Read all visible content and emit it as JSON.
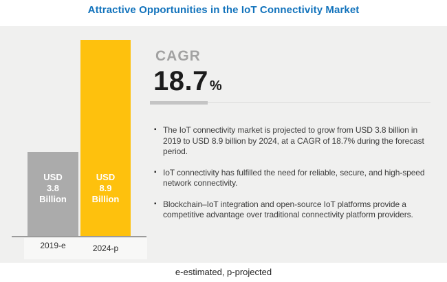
{
  "page": {
    "title": "Attractive Opportunities in the IoT Connectivity Market",
    "footnote": "e-estimated, p-projected"
  },
  "cagr": {
    "label": "CAGR",
    "value": "18.7",
    "unit": "%"
  },
  "insights": [
    {
      "text": "The IoT connectivity market is projected to grow from USD 3.8 billion in 2019 to USD 8.9 billion by 2024, at a CAGR of 18.7% during the forecast period."
    },
    {
      "text": "IoT connectivity has fulfilled the need for reliable, secure, and high-speed network connectivity."
    },
    {
      "text": "Blockchain–IoT integration and open-source IoT platforms provide a competitive advantage over traditional connectivity platform providers."
    }
  ],
  "icons": {
    "bullet": "▪"
  },
  "chart_data": {
    "type": "bar",
    "title": "Attractive Opportunities in the IoT Connectivity Market",
    "categories": [
      "2019-e",
      "2024-p"
    ],
    "values": [
      3.8,
      8.9
    ],
    "value_unit": "USD Billion",
    "cagr_percent": 18.7,
    "ylim": [
      0,
      8.9
    ],
    "grid": false,
    "legend": false,
    "bars": [
      {
        "category": "2019-e",
        "value": 3.8,
        "color": "#ABABAB",
        "label_lines": [
          "USD",
          "3.8",
          "Billion"
        ]
      },
      {
        "category": "2024-p",
        "value": 8.9,
        "color": "#FEC10D",
        "label_lines": [
          "USD",
          "8.9",
          "Billion"
        ]
      }
    ]
  },
  "colors": {
    "title_blue": "#1273BC",
    "bar_gray": "#ABABAB",
    "bar_yellow": "#FEC10D",
    "panel_bg": "#F0F0EF",
    "cagr_label_gray": "#A2A2A2",
    "cagr_value_dark": "#1C1C1C",
    "body_text": "#3C3C3C"
  }
}
